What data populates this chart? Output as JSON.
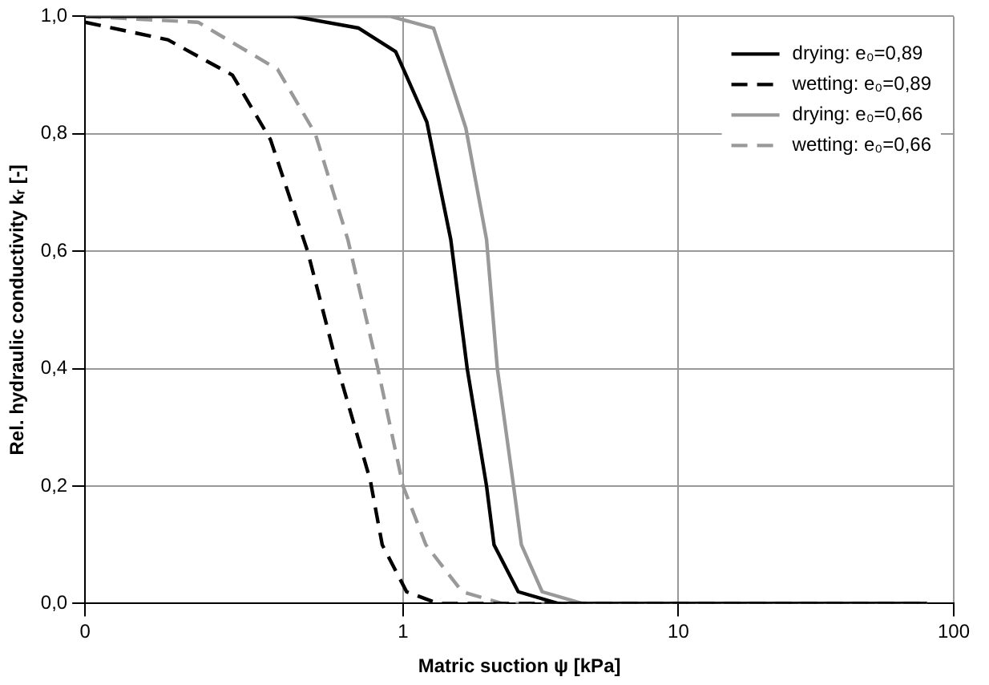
{
  "chart_data": {
    "type": "line",
    "xlabel": "Matric suction ψ [kPa]",
    "ylabel": "Rel. hydraulic conductivity kᵣ [-]",
    "log": "x",
    "xlim": [
      0.07,
      100
    ],
    "xticks": [
      {
        "value": 0.07,
        "label": "0"
      },
      1,
      10,
      100
    ],
    "ylim": [
      0,
      1
    ],
    "yticks": [
      {
        "value": 0,
        "label": "0,0"
      },
      {
        "value": 0.2,
        "label": "0,2"
      },
      {
        "value": 0.4,
        "label": "0,4"
      },
      {
        "value": 0.6,
        "label": "0,6"
      },
      {
        "value": 0.8,
        "label": "0,8"
      },
      {
        "value": 1,
        "label": "1,0"
      }
    ],
    "grid": true,
    "legend": "top right",
    "marker": "none",
    "series": [
      {
        "name": "drying: e₀=0,89",
        "color": "#000000",
        "line_style": "solid",
        "x": [
          0.07,
          0.4,
          0.69,
          0.94,
          1.22,
          1.49,
          1.71,
          2.01,
          2.14,
          2.62,
          3.66,
          80
        ],
        "values": [
          1,
          1,
          0.98,
          0.94,
          0.82,
          0.62,
          0.4,
          0.2,
          0.1,
          0.02,
          0,
          0
        ]
      },
      {
        "name": "wetting: e₀=0,89",
        "color": "#000000",
        "line_style": "dashed",
        "x": [
          0.07,
          0.14,
          0.24,
          0.33,
          0.45,
          0.58,
          0.76,
          0.84,
          1.03,
          1.34,
          80
        ],
        "values": [
          0.99,
          0.96,
          0.9,
          0.79,
          0.6,
          0.4,
          0.21,
          0.1,
          0.02,
          0,
          0
        ]
      },
      {
        "name": "drying: e₀=0,66",
        "color": "#999999",
        "line_style": "solid",
        "x": [
          0.07,
          0.9,
          1.29,
          1.69,
          2.01,
          2.2,
          2.52,
          2.69,
          3.2,
          4.48,
          80
        ],
        "values": [
          1,
          1,
          0.98,
          0.81,
          0.62,
          0.4,
          0.2,
          0.1,
          0.02,
          0,
          0
        ]
      },
      {
        "name": "wetting: e₀=0,66",
        "color": "#999999",
        "line_style": "dashed",
        "x": [
          0.07,
          0.18,
          0.35,
          0.48,
          0.63,
          0.81,
          1,
          1.21,
          1.64,
          2.29,
          80
        ],
        "values": [
          1,
          0.99,
          0.91,
          0.8,
          0.62,
          0.4,
          0.2,
          0.1,
          0.02,
          0,
          0
        ]
      }
    ]
  }
}
